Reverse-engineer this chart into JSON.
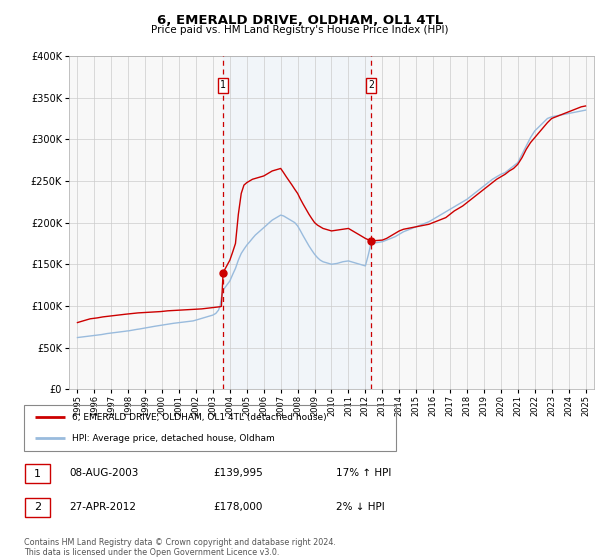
{
  "title": "6, EMERALD DRIVE, OLDHAM, OL1 4TL",
  "subtitle": "Price paid vs. HM Land Registry's House Price Index (HPI)",
  "property_color": "#cc0000",
  "hpi_color": "#99bbdd",
  "shade_color": "#ddeeff",
  "vline_color": "#cc0000",
  "transaction1_date": 2003.6,
  "transaction2_date": 2012.33,
  "legend_entry1": "6, EMERALD DRIVE, OLDHAM, OL1 4TL (detached house)",
  "legend_entry2": "HPI: Average price, detached house, Oldham",
  "table_row1": [
    "1",
    "08-AUG-2003",
    "£139,995",
    "17% ↑ HPI"
  ],
  "table_row2": [
    "2",
    "27-APR-2012",
    "£178,000",
    "2% ↓ HPI"
  ],
  "footer": "Contains HM Land Registry data © Crown copyright and database right 2024.\nThis data is licensed under the Open Government Licence v3.0.",
  "ylim": [
    0,
    400000
  ],
  "xlim": [
    1994.5,
    2025.5
  ],
  "yticks": [
    0,
    50000,
    100000,
    150000,
    200000,
    250000,
    300000,
    350000,
    400000
  ],
  "xticks": [
    1995,
    1996,
    1997,
    1998,
    1999,
    2000,
    2001,
    2002,
    2003,
    2004,
    2005,
    2006,
    2007,
    2008,
    2009,
    2010,
    2011,
    2012,
    2013,
    2014,
    2015,
    2016,
    2017,
    2018,
    2019,
    2020,
    2021,
    2022,
    2023,
    2024,
    2025
  ],
  "property_x": [
    1995.0,
    1995.08,
    1995.17,
    1995.25,
    1995.33,
    1995.42,
    1995.5,
    1995.58,
    1995.67,
    1995.75,
    1995.83,
    1995.92,
    1996.0,
    1996.08,
    1996.17,
    1996.25,
    1996.33,
    1996.42,
    1996.5,
    1996.58,
    1996.67,
    1996.75,
    1996.83,
    1996.92,
    1997.0,
    1997.08,
    1997.17,
    1997.25,
    1997.33,
    1997.42,
    1997.5,
    1997.58,
    1997.67,
    1997.75,
    1997.83,
    1997.92,
    1998.0,
    1998.08,
    1998.17,
    1998.25,
    1998.33,
    1998.42,
    1998.5,
    1998.58,
    1998.67,
    1998.75,
    1998.83,
    1998.92,
    1999.0,
    1999.08,
    1999.17,
    1999.25,
    1999.33,
    1999.42,
    1999.5,
    1999.58,
    1999.67,
    1999.75,
    1999.83,
    1999.92,
    2000.0,
    2000.08,
    2000.17,
    2000.25,
    2000.33,
    2000.42,
    2000.5,
    2000.58,
    2000.67,
    2000.75,
    2000.83,
    2000.92,
    2001.0,
    2001.08,
    2001.17,
    2001.25,
    2001.33,
    2001.42,
    2001.5,
    2001.58,
    2001.67,
    2001.75,
    2001.83,
    2001.92,
    2002.0,
    2002.08,
    2002.17,
    2002.25,
    2002.33,
    2002.42,
    2002.5,
    2002.58,
    2002.67,
    2002.75,
    2002.83,
    2002.92,
    2003.0,
    2003.08,
    2003.17,
    2003.25,
    2003.33,
    2003.42,
    2003.5,
    2003.6,
    2004.0,
    2004.17,
    2004.33,
    2004.5,
    2004.67,
    2004.83,
    2005.0,
    2005.17,
    2005.33,
    2005.5,
    2005.67,
    2005.83,
    2006.0,
    2006.17,
    2006.33,
    2006.5,
    2006.67,
    2006.83,
    2007.0,
    2007.17,
    2007.33,
    2007.5,
    2007.67,
    2007.83,
    2008.0,
    2008.17,
    2008.33,
    2008.5,
    2008.67,
    2008.83,
    2009.0,
    2009.17,
    2009.33,
    2009.5,
    2009.67,
    2009.83,
    2010.0,
    2010.17,
    2010.33,
    2010.5,
    2010.67,
    2010.83,
    2011.0,
    2011.17,
    2011.33,
    2011.5,
    2011.67,
    2011.83,
    2012.0,
    2012.17,
    2012.33,
    2013.0,
    2013.25,
    2013.5,
    2013.75,
    2014.0,
    2014.25,
    2014.5,
    2014.75,
    2015.0,
    2015.25,
    2015.5,
    2015.75,
    2016.0,
    2016.25,
    2016.5,
    2016.75,
    2017.0,
    2017.25,
    2017.5,
    2017.75,
    2018.0,
    2018.25,
    2018.5,
    2018.75,
    2019.0,
    2019.25,
    2019.5,
    2019.75,
    2020.0,
    2020.25,
    2020.5,
    2020.75,
    2021.0,
    2021.25,
    2021.5,
    2021.75,
    2022.0,
    2022.25,
    2022.5,
    2022.75,
    2023.0,
    2023.25,
    2023.5,
    2023.75,
    2024.0,
    2024.25,
    2024.5,
    2024.75,
    2025.0
  ],
  "property_y": [
    80000,
    80500,
    81000,
    81500,
    82000,
    82500,
    83000,
    83500,
    84000,
    84500,
    84700,
    84900,
    85000,
    85300,
    85600,
    85900,
    86200,
    86500,
    86800,
    87000,
    87200,
    87400,
    87600,
    87800,
    88000,
    88200,
    88400,
    88600,
    88800,
    89000,
    89200,
    89400,
    89600,
    89800,
    90000,
    90200,
    90400,
    90600,
    90800,
    91000,
    91200,
    91400,
    91500,
    91600,
    91700,
    91800,
    91900,
    92000,
    92100,
    92200,
    92300,
    92400,
    92500,
    92600,
    92700,
    92800,
    92900,
    93000,
    93100,
    93200,
    93400,
    93600,
    93800,
    94000,
    94100,
    94200,
    94300,
    94400,
    94500,
    94600,
    94700,
    94800,
    94900,
    95000,
    95000,
    95100,
    95200,
    95300,
    95400,
    95500,
    95600,
    95700,
    95800,
    95900,
    96000,
    96100,
    96200,
    96300,
    96400,
    96600,
    96800,
    97000,
    97200,
    97400,
    97600,
    97800,
    98000,
    98200,
    98400,
    98600,
    98800,
    99000,
    99500,
    139995,
    155000,
    165000,
    175000,
    210000,
    235000,
    245000,
    248000,
    250000,
    252000,
    253000,
    254000,
    255000,
    256000,
    258000,
    260000,
    262000,
    263000,
    264000,
    265000,
    260000,
    255000,
    250000,
    245000,
    240000,
    235000,
    228000,
    222000,
    216000,
    210000,
    205000,
    200000,
    197000,
    195000,
    193000,
    192000,
    191000,
    190000,
    190500,
    191000,
    191500,
    192000,
    192500,
    193000,
    191000,
    189000,
    187000,
    185000,
    183000,
    181000,
    179500,
    178000,
    179000,
    181000,
    184000,
    187000,
    190000,
    192000,
    193000,
    194000,
    195000,
    196000,
    197000,
    198000,
    200000,
    202000,
    204000,
    206000,
    210000,
    214000,
    217000,
    220000,
    224000,
    228000,
    232000,
    236000,
    240000,
    244000,
    248000,
    252000,
    255000,
    258000,
    262000,
    265000,
    270000,
    278000,
    288000,
    296000,
    302000,
    308000,
    314000,
    320000,
    325000,
    327000,
    329000,
    331000,
    333000,
    335000,
    337000,
    339000,
    340000
  ],
  "hpi_x": [
    1995.0,
    1995.08,
    1995.17,
    1995.25,
    1995.33,
    1995.42,
    1995.5,
    1995.58,
    1995.67,
    1995.75,
    1995.83,
    1995.92,
    1996.0,
    1996.08,
    1996.17,
    1996.25,
    1996.33,
    1996.42,
    1996.5,
    1996.58,
    1996.67,
    1996.75,
    1996.83,
    1996.92,
    1997.0,
    1997.08,
    1997.17,
    1997.25,
    1997.33,
    1997.42,
    1997.5,
    1997.58,
    1997.67,
    1997.75,
    1997.83,
    1997.92,
    1998.0,
    1998.08,
    1998.17,
    1998.25,
    1998.33,
    1998.42,
    1998.5,
    1998.58,
    1998.67,
    1998.75,
    1998.83,
    1998.92,
    1999.0,
    1999.08,
    1999.17,
    1999.25,
    1999.33,
    1999.42,
    1999.5,
    1999.58,
    1999.67,
    1999.75,
    1999.83,
    1999.92,
    2000.0,
    2000.08,
    2000.17,
    2000.25,
    2000.33,
    2000.42,
    2000.5,
    2000.58,
    2000.67,
    2000.75,
    2000.83,
    2000.92,
    2001.0,
    2001.08,
    2001.17,
    2001.25,
    2001.33,
    2001.42,
    2001.5,
    2001.58,
    2001.67,
    2001.75,
    2001.83,
    2001.92,
    2002.0,
    2002.08,
    2002.17,
    2002.25,
    2002.33,
    2002.42,
    2002.5,
    2002.58,
    2002.67,
    2002.75,
    2002.83,
    2002.92,
    2003.0,
    2003.08,
    2003.17,
    2003.25,
    2003.33,
    2003.42,
    2003.5,
    2003.6,
    2004.0,
    2004.17,
    2004.33,
    2004.5,
    2004.67,
    2004.83,
    2005.0,
    2005.17,
    2005.33,
    2005.5,
    2005.67,
    2005.83,
    2006.0,
    2006.17,
    2006.33,
    2006.5,
    2006.67,
    2006.83,
    2007.0,
    2007.17,
    2007.33,
    2007.5,
    2007.67,
    2007.83,
    2008.0,
    2008.17,
    2008.33,
    2008.5,
    2008.67,
    2008.83,
    2009.0,
    2009.17,
    2009.33,
    2009.5,
    2009.67,
    2009.83,
    2010.0,
    2010.17,
    2010.33,
    2010.5,
    2010.67,
    2010.83,
    2011.0,
    2011.17,
    2011.33,
    2011.5,
    2011.67,
    2011.83,
    2012.0,
    2012.17,
    2012.33,
    2013.0,
    2013.25,
    2013.5,
    2013.75,
    2014.0,
    2014.25,
    2014.5,
    2014.75,
    2015.0,
    2015.25,
    2015.5,
    2015.75,
    2016.0,
    2016.25,
    2016.5,
    2016.75,
    2017.0,
    2017.25,
    2017.5,
    2017.75,
    2018.0,
    2018.25,
    2018.5,
    2018.75,
    2019.0,
    2019.25,
    2019.5,
    2019.75,
    2020.0,
    2020.25,
    2020.5,
    2020.75,
    2021.0,
    2021.25,
    2021.5,
    2021.75,
    2022.0,
    2022.25,
    2022.5,
    2022.75,
    2023.0,
    2023.25,
    2023.5,
    2023.75,
    2024.0,
    2024.25,
    2024.5,
    2024.75,
    2025.0
  ],
  "hpi_y": [
    62000,
    62200,
    62400,
    62600,
    62800,
    63000,
    63200,
    63400,
    63600,
    63800,
    64000,
    64200,
    64400,
    64600,
    64800,
    65000,
    65300,
    65600,
    65900,
    66200,
    66500,
    66800,
    67000,
    67200,
    67400,
    67600,
    67800,
    68000,
    68200,
    68400,
    68600,
    68800,
    69000,
    69300,
    69600,
    69900,
    70000,
    70300,
    70600,
    70900,
    71200,
    71500,
    71800,
    72000,
    72300,
    72600,
    72900,
    73200,
    73500,
    73800,
    74100,
    74400,
    74700,
    75000,
    75300,
    75600,
    75900,
    76200,
    76500,
    76800,
    77000,
    77300,
    77600,
    77900,
    78200,
    78500,
    78700,
    78900,
    79100,
    79300,
    79500,
    79700,
    80000,
    80200,
    80400,
    80600,
    80800,
    81000,
    81200,
    81400,
    81600,
    81800,
    82000,
    82500,
    83000,
    83500,
    84000,
    84500,
    85000,
    85500,
    86000,
    86500,
    87000,
    87500,
    88000,
    88500,
    89000,
    90000,
    91000,
    93000,
    95000,
    100000,
    110000,
    119000,
    130000,
    138000,
    145000,
    155000,
    163000,
    168000,
    173000,
    177000,
    181000,
    185000,
    188000,
    191000,
    194000,
    197000,
    200000,
    203000,
    205000,
    207000,
    209000,
    208000,
    206000,
    204000,
    202000,
    200000,
    196000,
    190000,
    184000,
    178000,
    172000,
    167000,
    162000,
    158000,
    155000,
    153000,
    152000,
    151000,
    150000,
    150500,
    151000,
    152000,
    153000,
    153500,
    154000,
    153000,
    152000,
    151000,
    150000,
    149000,
    148000,
    161000,
    175000,
    177000,
    179000,
    181000,
    183000,
    186000,
    189000,
    191000,
    193000,
    195000,
    197000,
    199000,
    201000,
    204000,
    207000,
    210000,
    213000,
    216000,
    219000,
    222000,
    225000,
    228000,
    232000,
    236000,
    240000,
    244000,
    248000,
    252000,
    255000,
    258000,
    260000,
    264000,
    268000,
    272000,
    282000,
    292000,
    302000,
    310000,
    315000,
    320000,
    325000,
    327000,
    328000,
    329000,
    330000,
    331000,
    332000,
    333000,
    334000,
    335000
  ]
}
